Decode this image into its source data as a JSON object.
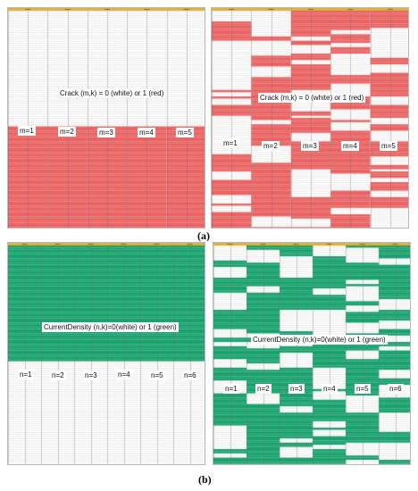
{
  "figure": {
    "label_a": "(a)",
    "label_b": "(b)"
  },
  "colors": {
    "red": "#f26363",
    "green": "#14a56e",
    "header_bar": "#e6b033",
    "grid": "#c8c8c8",
    "white": "#ffffff"
  },
  "panels": [
    {
      "id": "a-left",
      "fill": "red",
      "pattern": "bottom-half",
      "title": "Crack (m,k) = 0 (white) or 1 (red)",
      "groups": [
        "m=1",
        "m=2",
        "m=3",
        "m=4",
        "m=5"
      ]
    },
    {
      "id": "a-right",
      "fill": "red",
      "pattern": "random",
      "title": "Crack (m,k) = 0 (white) or 1 (red)",
      "groups": [
        "m=1",
        "m=2",
        "m=3",
        "m=4",
        "m=5"
      ]
    },
    {
      "id": "b-left",
      "fill": "green",
      "pattern": "top-half",
      "title": "CurrentDensity (n,k)=0(white) or 1 (green)",
      "groups": [
        "n=1",
        "n=2",
        "n=3",
        "n=4",
        "n=5",
        "n=6"
      ]
    },
    {
      "id": "b-right",
      "fill": "green",
      "pattern": "random",
      "title": "CurrentDensity (n,k)=0(white) or 1 (green)",
      "groups": [
        "n=1",
        "n=2",
        "n=3",
        "n=4",
        "n=5",
        "n=6"
      ]
    }
  ]
}
